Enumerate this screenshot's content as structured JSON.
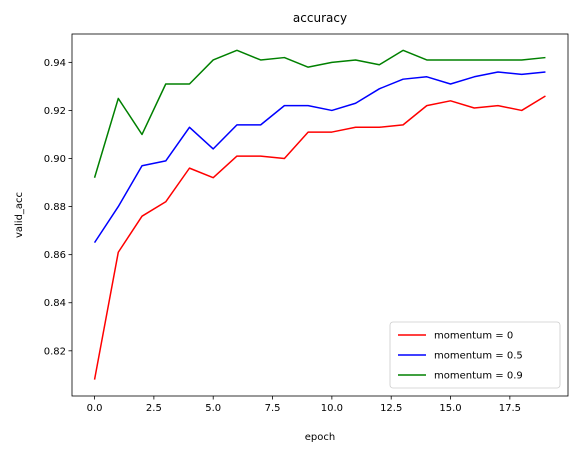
{
  "chart_data": {
    "type": "line",
    "title": "accuracy",
    "xlabel": "epoch",
    "ylabel": "valid_acc",
    "xlim": [
      -0.95,
      19.95
    ],
    "ylim": [
      0.8012,
      0.9518
    ],
    "xticks": [
      0.0,
      2.5,
      5.0,
      7.5,
      10.0,
      12.5,
      15.0,
      17.5
    ],
    "xtick_labels": [
      "0.0",
      "2.5",
      "5.0",
      "7.5",
      "10.0",
      "12.5",
      "15.0",
      "17.5"
    ],
    "yticks": [
      0.82,
      0.84,
      0.86,
      0.88,
      0.9,
      0.92,
      0.94
    ],
    "ytick_labels": [
      "0.82",
      "0.84",
      "0.86",
      "0.88",
      "0.90",
      "0.92",
      "0.94"
    ],
    "grid": false,
    "legend_position": "lower-right",
    "x": [
      0,
      1,
      2,
      3,
      4,
      5,
      6,
      7,
      8,
      9,
      10,
      11,
      12,
      13,
      14,
      15,
      16,
      17,
      18,
      19
    ],
    "series": [
      {
        "name": "momentum = 0",
        "color": "#ff0000",
        "values": [
          0.808,
          0.861,
          0.876,
          0.882,
          0.896,
          0.892,
          0.901,
          0.901,
          0.9,
          0.911,
          0.911,
          0.913,
          0.913,
          0.914,
          0.922,
          0.924,
          0.921,
          0.922,
          0.92,
          0.926
        ]
      },
      {
        "name": "momentum = 0.5",
        "color": "#0000ff",
        "values": [
          0.865,
          0.88,
          0.897,
          0.899,
          0.913,
          0.904,
          0.914,
          0.914,
          0.922,
          0.922,
          0.92,
          0.923,
          0.929,
          0.933,
          0.934,
          0.931,
          0.934,
          0.936,
          0.935,
          0.936
        ]
      },
      {
        "name": "momentum = 0.9",
        "color": "#008000",
        "values": [
          0.892,
          0.925,
          0.91,
          0.931,
          0.931,
          0.941,
          0.945,
          0.941,
          0.942,
          0.938,
          0.94,
          0.941,
          0.939,
          0.945,
          0.941,
          0.941,
          0.941,
          0.941,
          0.941,
          0.942
        ]
      }
    ]
  }
}
